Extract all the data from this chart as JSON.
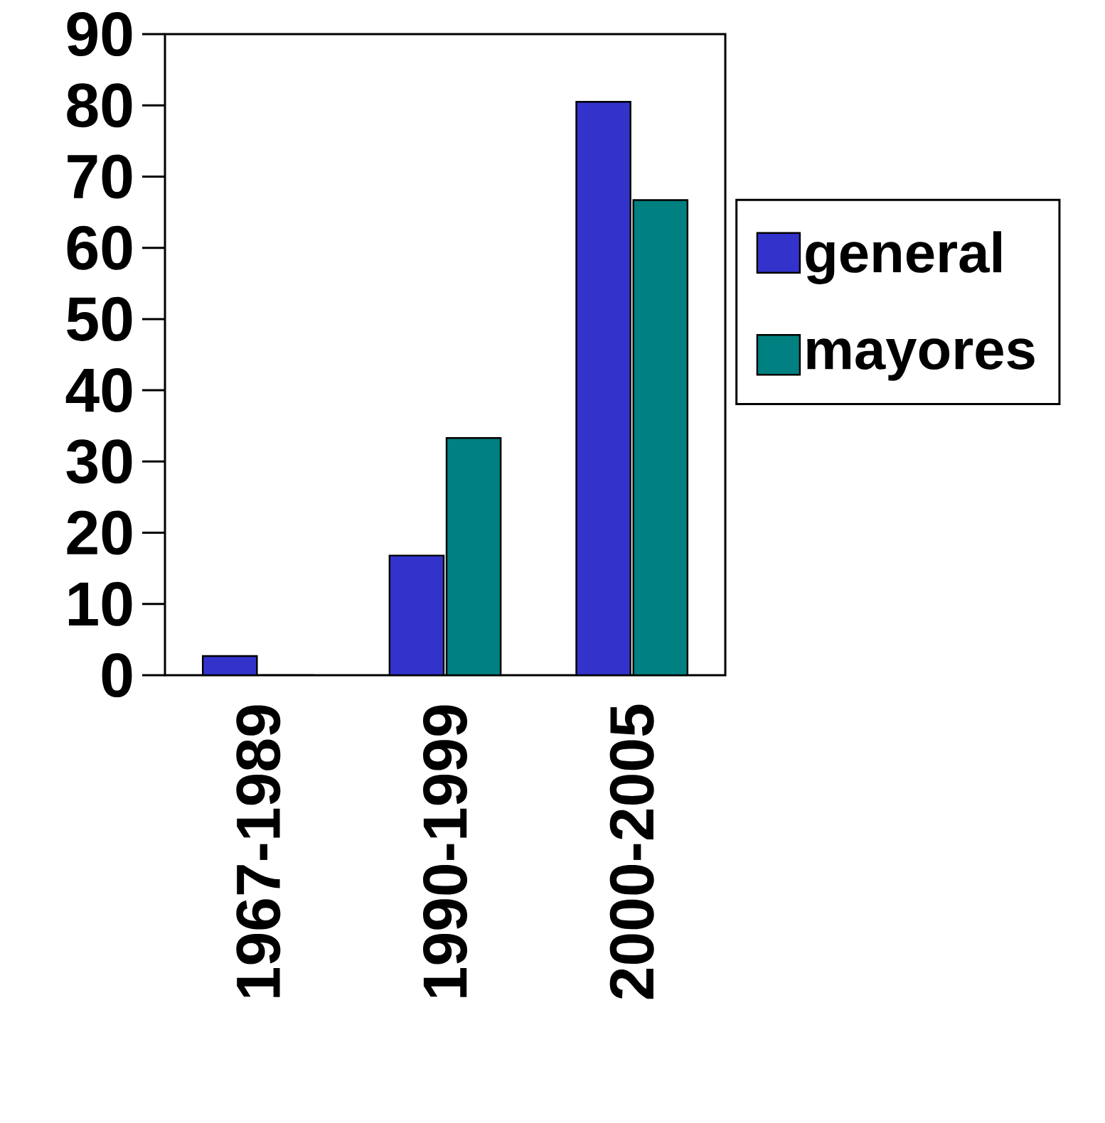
{
  "chart_data": {
    "type": "bar",
    "categories": [
      "1967-1989",
      "1990-1999",
      "2000-2005"
    ],
    "series": [
      {
        "name": "general",
        "color": "#3333cc",
        "values": [
          2.7,
          16.8,
          80.5
        ]
      },
      {
        "name": "mayores",
        "color": "#008080",
        "values": [
          0,
          33.3,
          66.7
        ]
      }
    ],
    "ylim": [
      0,
      90
    ],
    "yticks": [
      0,
      10,
      20,
      30,
      40,
      50,
      60,
      70,
      80,
      90
    ],
    "legend": "right"
  }
}
